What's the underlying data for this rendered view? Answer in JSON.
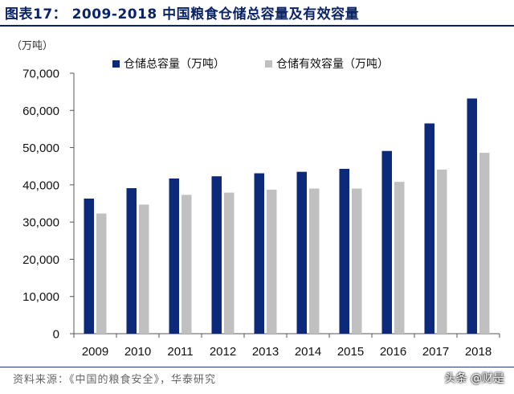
{
  "title": "图表17： 2009-2018 中国粮食仓储总容量及有效容量",
  "unit": "（万吨）",
  "source": "资料来源：《中国的粮食安全》，华泰研究",
  "watermark": "头条 @财是",
  "colors": {
    "series1": "#0d2a7a",
    "series2": "#c0c0c0",
    "title": "#0b2466"
  },
  "chart_data": {
    "type": "bar",
    "categories": [
      "2009",
      "2010",
      "2011",
      "2012",
      "2013",
      "2014",
      "2015",
      "2016",
      "2017",
      "2018"
    ],
    "series": [
      {
        "name": "仓储总容量（万吨）",
        "values": [
          36300,
          39100,
          41700,
          42300,
          43100,
          43500,
          44300,
          49100,
          56500,
          63200
        ]
      },
      {
        "name": "仓储有效容量（万吨）",
        "values": [
          32300,
          34700,
          37300,
          37900,
          38700,
          39000,
          39000,
          40800,
          44100,
          48600
        ]
      }
    ],
    "yticks": [
      "0",
      "10,000",
      "20,000",
      "30,000",
      "40,000",
      "50,000",
      "60,000",
      "70,000"
    ],
    "ylim": [
      0,
      70000
    ],
    "legend": "top",
    "xlabel": "",
    "ylabel": ""
  }
}
